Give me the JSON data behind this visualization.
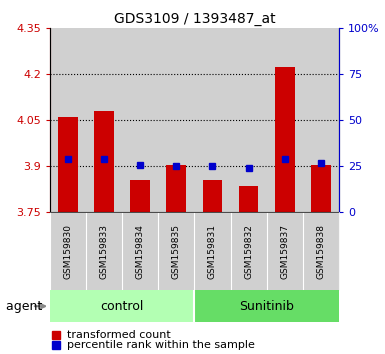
{
  "title": "GDS3109 / 1393487_at",
  "samples": [
    "GSM159830",
    "GSM159833",
    "GSM159834",
    "GSM159835",
    "GSM159831",
    "GSM159832",
    "GSM159837",
    "GSM159838"
  ],
  "red_values": [
    4.06,
    4.08,
    3.855,
    3.905,
    3.855,
    3.835,
    4.225,
    3.905
  ],
  "blue_values": [
    3.925,
    3.925,
    3.905,
    3.9,
    3.9,
    3.895,
    3.925,
    3.91
  ],
  "ymin": 3.75,
  "ymax": 4.35,
  "yticks": [
    3.75,
    3.9,
    4.05,
    4.2,
    4.35
  ],
  "ytick_labels": [
    "3.75",
    "3.9",
    "4.05",
    "4.2",
    "4.35"
  ],
  "right_yticks": [
    0,
    25,
    50,
    75,
    100
  ],
  "right_ytick_labels": [
    "0",
    "25",
    "50",
    "75",
    "100%"
  ],
  "grid_lines": [
    3.9,
    4.05,
    4.2
  ],
  "control_color": "#b3ffb3",
  "sunitinib_color": "#66dd66",
  "bar_bg_color": "#d0d0d0",
  "red_color": "#cc0000",
  "blue_color": "#0000cc",
  "legend_red": "transformed count",
  "legend_blue": "percentile rank within the sample",
  "agent_label": "agent",
  "bar_width": 0.55,
  "bar_bottom": 3.75,
  "n_control": 4,
  "n_sunitinib": 4,
  "control_label": "control",
  "sunitinib_label": "Sunitinib"
}
